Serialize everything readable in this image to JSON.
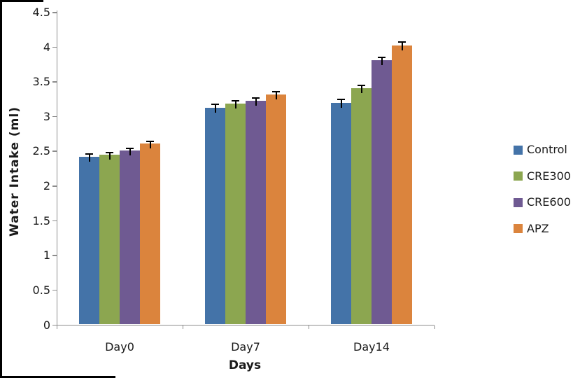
{
  "figure": {
    "background": "#ffffff",
    "crop_border_color": "#000000"
  },
  "chart_data": {
    "type": "bar",
    "title": "",
    "xlabel": "Days",
    "ylabel": "Water Intake (ml)",
    "categories": [
      "Day0",
      "Day7",
      "Day14"
    ],
    "series": [
      {
        "name": "Control",
        "color": "#4473A8",
        "values": [
          2.41,
          3.12,
          3.19
        ],
        "errors_upper": [
          0.05,
          0.06,
          0.06
        ]
      },
      {
        "name": "CRE300",
        "color": "#8CA650",
        "values": [
          2.44,
          3.18,
          3.4
        ],
        "errors_upper": [
          0.04,
          0.05,
          0.05
        ]
      },
      {
        "name": "CRE600",
        "color": "#6F5A92",
        "values": [
          2.5,
          3.22,
          3.8
        ],
        "errors_upper": [
          0.04,
          0.05,
          0.06
        ]
      },
      {
        "name": "APZ",
        "color": "#DB843D",
        "values": [
          2.61,
          3.31,
          4.02
        ],
        "errors_upper": [
          0.04,
          0.05,
          0.06
        ]
      }
    ],
    "ylim": [
      0,
      4.5
    ],
    "ytick_step": 0.5,
    "yticks": [
      "0",
      "0.5",
      "1",
      "1.5",
      "2",
      "2.5",
      "3",
      "3.5",
      "4",
      "4.5"
    ],
    "grid": false,
    "legend_position": "right",
    "error_bars": "upper",
    "axis_color": "#8C8C8C",
    "text_color": "#1A1A1A"
  }
}
